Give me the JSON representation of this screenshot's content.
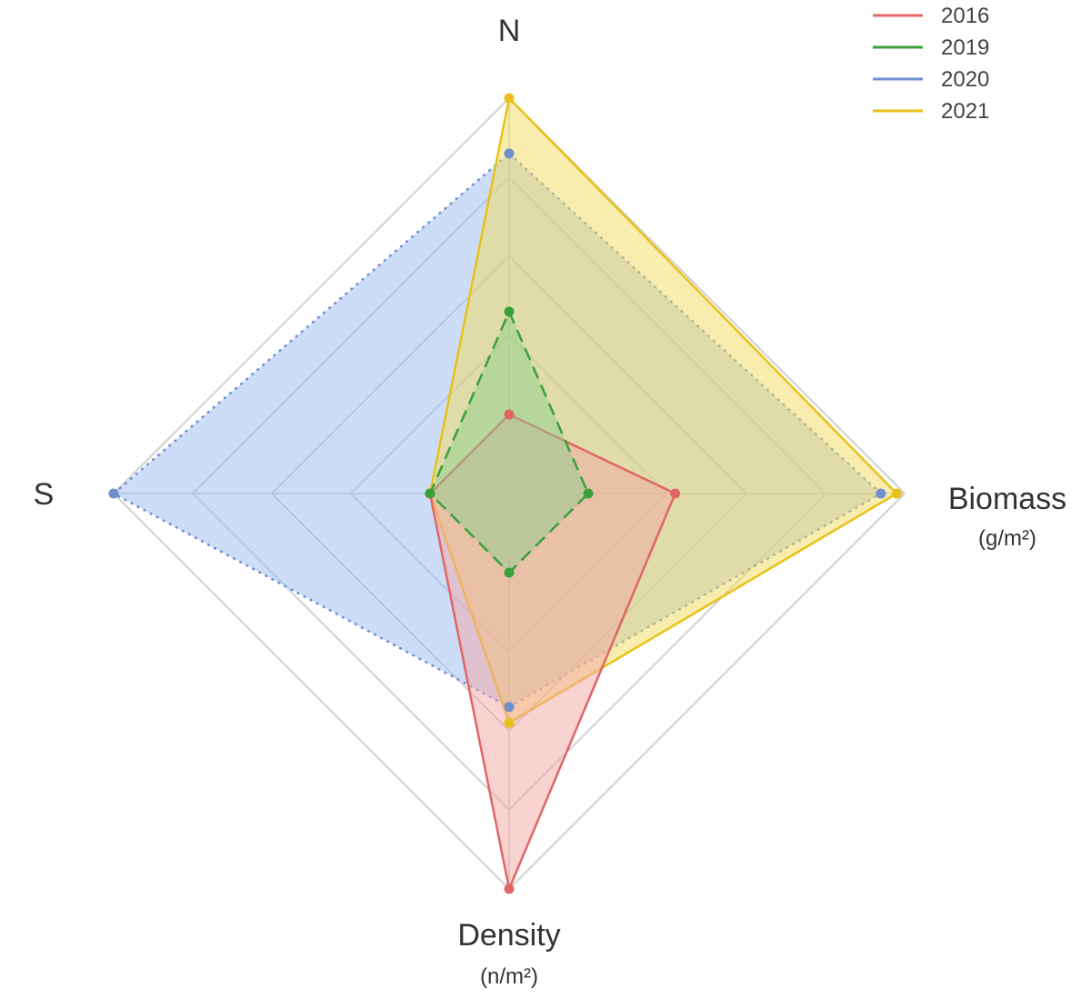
{
  "chart_data": {
    "type": "radar",
    "axes": [
      {
        "label": "N",
        "unit": ""
      },
      {
        "label": "Biomass",
        "unit": "(g/m²)"
      },
      {
        "label": "Density",
        "unit": "(n/m²)"
      },
      {
        "label": "S",
        "unit": ""
      }
    ],
    "rlim": [
      0,
      5
    ],
    "rings": 5,
    "grid": true,
    "legend": "top-right",
    "series": [
      {
        "name": "2016",
        "color": "#e06666",
        "fill": "#f4a6a6",
        "dash": "solid",
        "values": [
          1.0,
          2.1,
          5.0,
          1.0
        ]
      },
      {
        "name": "2019",
        "color": "#3aa03a",
        "fill": "#8fd08f",
        "dash": "dashed",
        "values": [
          2.3,
          1.0,
          1.0,
          1.0
        ]
      },
      {
        "name": "2020",
        "color": "#6f8fcf",
        "fill": "#9bbcf2",
        "dash": "dotted",
        "values": [
          4.3,
          4.7,
          2.7,
          5.0
        ]
      },
      {
        "name": "2021",
        "color": "#e8c21a",
        "fill": "#f2dc5a",
        "dash": "solid",
        "values": [
          5.0,
          4.9,
          2.9,
          1.0
        ]
      }
    ]
  }
}
